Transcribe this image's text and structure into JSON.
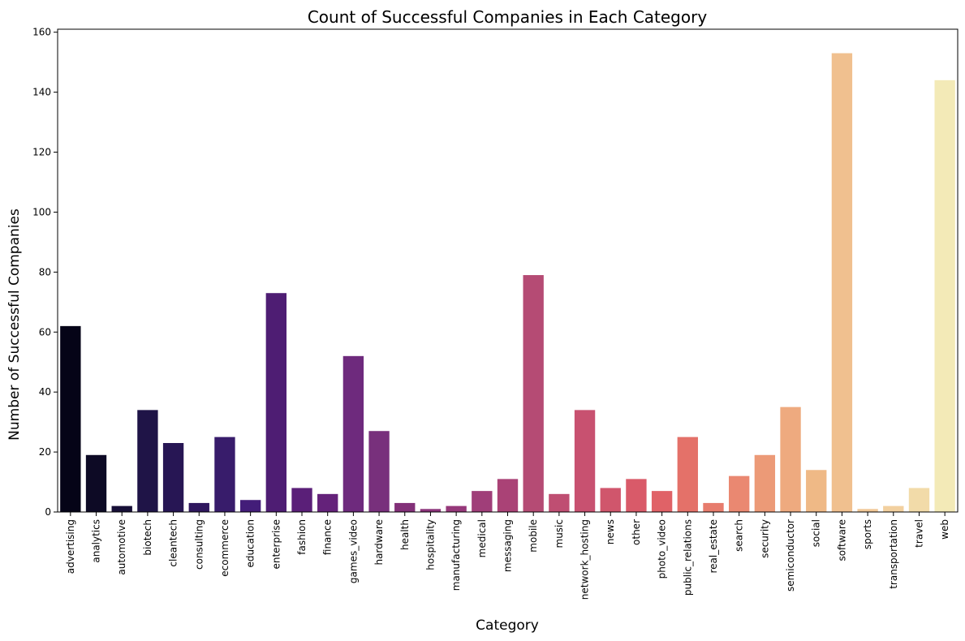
{
  "chart_data": {
    "type": "bar",
    "title": "Count of Successful Companies in Each Category",
    "xlabel": "Category",
    "ylabel": "Number of Successful Companies",
    "ylim": [
      0,
      161
    ],
    "yticks": [
      "0",
      "20",
      "40",
      "60",
      "80",
      "100",
      "120",
      "140",
      "160"
    ],
    "grid": false,
    "palette": "magma",
    "categories": [
      "advertising",
      "analytics",
      "automotive",
      "biotech",
      "cleantech",
      "consulting",
      "ecommerce",
      "education",
      "enterprise",
      "fashion",
      "finance",
      "games_video",
      "hardware",
      "health",
      "hospitality",
      "manufacturing",
      "medical",
      "messaging",
      "mobile",
      "music",
      "network_hosting",
      "news",
      "other",
      "photo_video",
      "public_relations",
      "real_estate",
      "search",
      "security",
      "semiconductor",
      "social",
      "software",
      "sports",
      "transportation",
      "travel",
      "web"
    ],
    "values": [
      62,
      19,
      2,
      34,
      23,
      3,
      25,
      4,
      73,
      8,
      6,
      52,
      27,
      3,
      1,
      2,
      7,
      11,
      79,
      6,
      34,
      8,
      11,
      7,
      25,
      3,
      12,
      19,
      35,
      14,
      153,
      1,
      2,
      8,
      144
    ],
    "colors": [
      "#050417",
      "#0d0a25",
      "#170f37",
      "#1f1447",
      "#271654",
      "#2f175e",
      "#381c6b",
      "#431d79",
      "#4e1d73",
      "#5a1f78",
      "#64227a",
      "#6e2a7d",
      "#78307c",
      "#823078",
      "#8c347b",
      "#96387a",
      "#a03e79",
      "#aa4276",
      "#b54b74",
      "#bf4e72",
      "#c85170",
      "#d0566c",
      "#d95a69",
      "#e06267",
      "#e47169",
      "#e77c6d",
      "#ea8871",
      "#ec9a77",
      "#eeaa7f",
      "#efb986",
      "#f0c08f",
      "#f1c897",
      "#f2d09f",
      "#f2dba9",
      "#f3eab7"
    ]
  }
}
